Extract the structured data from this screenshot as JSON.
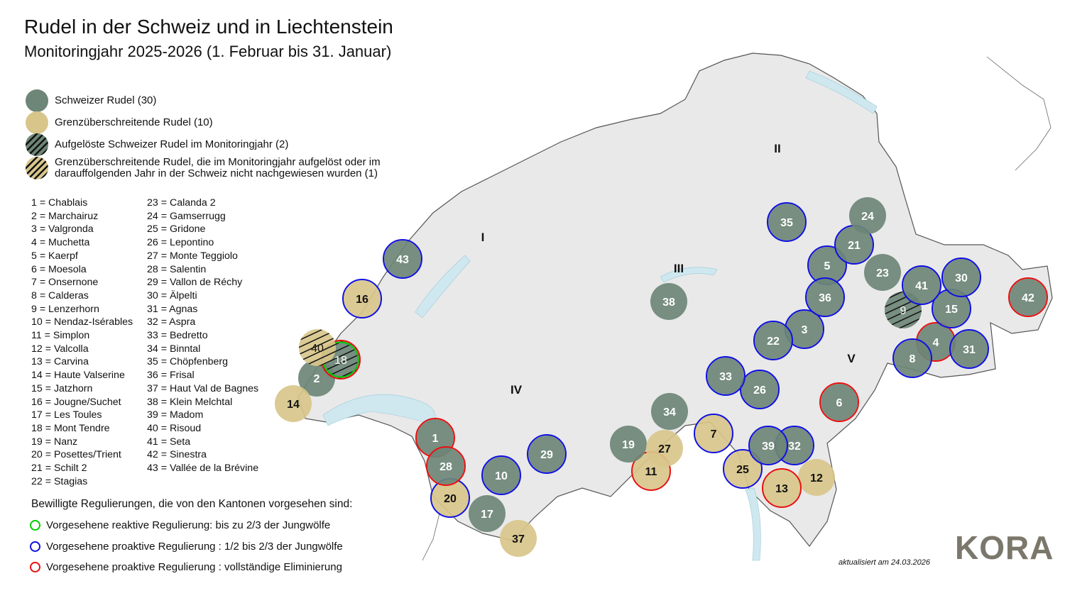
{
  "header": {
    "title": "Rudel in der Schweiz und in Liechtenstein",
    "subtitle": "Monitoringjahr 2025-2026 (1. Februar bis 31. Januar)"
  },
  "colors": {
    "swiss": "#6d8677",
    "cross": "#d8c58a",
    "reactive": "#00cc00",
    "proactive_partial": "#1010e0",
    "proactive_full": "#e81010"
  },
  "legend": [
    {
      "label": "Schweizer Rudel (30)",
      "style": "swiss"
    },
    {
      "label": "Grenzüberschreitende Rudel (10)",
      "style": "cross"
    },
    {
      "label": "Aufgelöste Schweizer Rudel im Monitoringjahr (2)",
      "style": "swiss-hatched"
    },
    {
      "label": "Grenzüberschreitende Rudel, die im Monitoringjahr aufgelöst oder im darauffolgenden Jahr in der Schweiz nicht nachgewiesen wurden (1)",
      "style": "cross-hatched"
    }
  ],
  "packs": [
    {
      "id": 1,
      "name": "Chablais",
      "type": "swiss",
      "reg": "full"
    },
    {
      "id": 2,
      "name": "Marchairuz",
      "type": "swiss",
      "reg": ""
    },
    {
      "id": 3,
      "name": "Valgronda",
      "type": "swiss",
      "reg": "partial"
    },
    {
      "id": 4,
      "name": "Muchetta",
      "type": "swiss",
      "reg": "full"
    },
    {
      "id": 5,
      "name": "Kaerpf",
      "type": "swiss",
      "reg": "partial"
    },
    {
      "id": 6,
      "name": "Moesola",
      "type": "swiss",
      "reg": "full"
    },
    {
      "id": 7,
      "name": "Onsernone",
      "type": "cross",
      "reg": "partial"
    },
    {
      "id": 8,
      "name": "Calderas",
      "type": "swiss",
      "reg": "partial"
    },
    {
      "id": 9,
      "name": "Lenzerhorn",
      "type": "swiss-dissolved",
      "reg": ""
    },
    {
      "id": 10,
      "name": "Nendaz-Isérables",
      "type": "swiss",
      "reg": "partial"
    },
    {
      "id": 11,
      "name": "Simplon",
      "type": "cross",
      "reg": "full"
    },
    {
      "id": 12,
      "name": "Valcolla",
      "type": "cross",
      "reg": ""
    },
    {
      "id": 13,
      "name": "Carvina",
      "type": "cross",
      "reg": "full"
    },
    {
      "id": 14,
      "name": "Haute Valserine",
      "type": "cross",
      "reg": ""
    },
    {
      "id": 15,
      "name": "Jatzhorn",
      "type": "swiss",
      "reg": "partial"
    },
    {
      "id": 16,
      "name": "Jougne/Suchet",
      "type": "cross",
      "reg": "partial"
    },
    {
      "id": 17,
      "name": "Les Toules",
      "type": "swiss",
      "reg": ""
    },
    {
      "id": 18,
      "name": "Mont Tendre",
      "type": "swiss-dissolved",
      "reg": "reactive+full"
    },
    {
      "id": 19,
      "name": "Nanz",
      "type": "swiss",
      "reg": ""
    },
    {
      "id": 20,
      "name": "Posettes/Trient",
      "type": "cross",
      "reg": "partial"
    },
    {
      "id": 21,
      "name": "Schilt 2",
      "type": "swiss",
      "reg": "partial"
    },
    {
      "id": 22,
      "name": "Stagias",
      "type": "swiss",
      "reg": "partial"
    },
    {
      "id": 23,
      "name": "Calanda 2",
      "type": "swiss",
      "reg": ""
    },
    {
      "id": 24,
      "name": "Gamserrugg",
      "type": "swiss",
      "reg": ""
    },
    {
      "id": 25,
      "name": "Gridone",
      "type": "cross",
      "reg": "partial"
    },
    {
      "id": 26,
      "name": "Lepontino",
      "type": "swiss",
      "reg": "partial"
    },
    {
      "id": 27,
      "name": "Monte Teggiolo",
      "type": "cross",
      "reg": ""
    },
    {
      "id": 28,
      "name": "Salentin",
      "type": "swiss",
      "reg": "full"
    },
    {
      "id": 29,
      "name": "Vallon de Réchy",
      "type": "swiss",
      "reg": "partial"
    },
    {
      "id": 30,
      "name": "Älpelti",
      "type": "swiss",
      "reg": "partial"
    },
    {
      "id": 31,
      "name": "Agnas",
      "type": "swiss",
      "reg": "partial"
    },
    {
      "id": 32,
      "name": "Aspra",
      "type": "swiss",
      "reg": "partial"
    },
    {
      "id": 33,
      "name": "Bedretto",
      "type": "swiss",
      "reg": "partial"
    },
    {
      "id": 34,
      "name": "Binntal",
      "type": "swiss",
      "reg": ""
    },
    {
      "id": 35,
      "name": "Chöpfenberg",
      "type": "swiss",
      "reg": "partial"
    },
    {
      "id": 36,
      "name": "Frisal",
      "type": "swiss",
      "reg": "partial"
    },
    {
      "id": 37,
      "name": "Haut Val de Bagnes",
      "type": "cross",
      "reg": ""
    },
    {
      "id": 38,
      "name": "Klein Melchtal",
      "type": "swiss",
      "reg": ""
    },
    {
      "id": 39,
      "name": "Madom",
      "type": "swiss",
      "reg": "partial"
    },
    {
      "id": 40,
      "name": "Risoud",
      "type": "cross-dissolved",
      "reg": ""
    },
    {
      "id": 41,
      "name": "Seta",
      "type": "swiss",
      "reg": "partial"
    },
    {
      "id": 42,
      "name": "Sinestra",
      "type": "swiss",
      "reg": "full"
    },
    {
      "id": 43,
      "name": "Vallée de la Brévine",
      "type": "swiss",
      "reg": "partial"
    }
  ],
  "regions": [
    "I",
    "II",
    "III",
    "IV",
    "V"
  ],
  "regulation": {
    "title": "Bewilligte Regulierungen, die von den Kantonen vorgesehen sind:",
    "items": [
      {
        "label": "Vorgesehene reaktive Regulierung: bis zu 2/3 der Jungwölfe",
        "color": "#00cc00"
      },
      {
        "label": "Vorgesehene proaktive Regulierung : 1/2 bis 2/3 der Jungwölfe",
        "color": "#1010e0"
      },
      {
        "label": "Vorgesehene proaktive Regulierung : vollständige Eliminierung",
        "color": "#e81010"
      }
    ]
  },
  "footer": {
    "updated": "aktualisiert am 24.03.2026",
    "logo": "KORA"
  }
}
